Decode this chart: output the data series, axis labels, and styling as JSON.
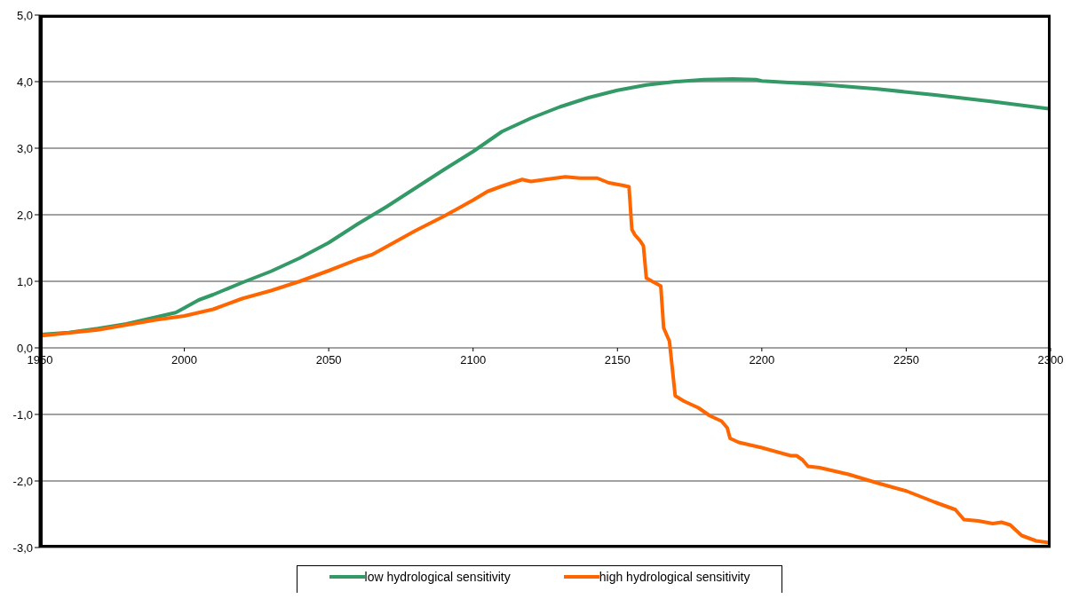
{
  "chart_data": {
    "type": "line",
    "xlim": [
      1950,
      2300
    ],
    "xticks": [
      1950,
      2000,
      2050,
      2100,
      2150,
      2200,
      2250,
      2300
    ],
    "ylim": [
      -3,
      5
    ],
    "yticks": [
      {
        "value": -3,
        "label": "-3,0"
      },
      {
        "value": -2,
        "label": "-2,0"
      },
      {
        "value": -1,
        "label": "-1,0"
      },
      {
        "value": 0,
        "label": "0,0"
      },
      {
        "value": 1,
        "label": "1,0"
      },
      {
        "value": 2,
        "label": "2,0"
      },
      {
        "value": 3,
        "label": "3,0"
      },
      {
        "value": 4,
        "label": "4,0"
      },
      {
        "value": 5,
        "label": "5,0"
      }
    ],
    "grid": "y",
    "legend": "bottom",
    "marker": "none",
    "line_style": "solid",
    "series": [
      {
        "name": "low hydrological sensitivity",
        "color": "#339966",
        "x": [
          1950,
          1960,
          1970,
          1980,
          1990,
          1997,
          2000,
          2005,
          2010,
          2020,
          2030,
          2040,
          2050,
          2055,
          2060,
          2070,
          2080,
          2090,
          2100,
          2110,
          2120,
          2130,
          2140,
          2150,
          2160,
          2170,
          2180,
          2190,
          2198,
          2200,
          2220,
          2240,
          2260,
          2280,
          2300
        ],
        "values": [
          0.2,
          0.23,
          0.29,
          0.36,
          0.46,
          0.53,
          0.6,
          0.72,
          0.8,
          0.98,
          1.15,
          1.35,
          1.58,
          1.72,
          1.86,
          2.12,
          2.4,
          2.68,
          2.95,
          3.25,
          3.45,
          3.62,
          3.76,
          3.87,
          3.95,
          4.0,
          4.03,
          4.04,
          4.03,
          4.01,
          3.96,
          3.89,
          3.8,
          3.7,
          3.59
        ]
      },
      {
        "name": "high hydrological sensitivity",
        "color": "#ff6600",
        "x": [
          1950,
          1970,
          1990,
          2000,
          2010,
          2020,
          2030,
          2040,
          2050,
          2060,
          2065,
          2070,
          2080,
          2090,
          2100,
          2105,
          2110,
          2117,
          2120,
          2125,
          2132,
          2137,
          2143,
          2147,
          2152,
          2154,
          2155,
          2156,
          2158,
          2159,
          2160,
          2162,
          2165,
          2166,
          2168,
          2170,
          2173,
          2178,
          2182,
          2186,
          2188,
          2189,
          2192,
          2200,
          2210,
          2212,
          2214,
          2216,
          2220,
          2230,
          2240,
          2250,
          2260,
          2267,
          2270,
          2275,
          2280,
          2283,
          2286,
          2290,
          2295,
          2300
        ],
        "values": [
          0.18,
          0.27,
          0.42,
          0.48,
          0.58,
          0.74,
          0.86,
          1.0,
          1.16,
          1.33,
          1.4,
          1.52,
          1.76,
          1.98,
          2.22,
          2.35,
          2.43,
          2.53,
          2.5,
          2.53,
          2.57,
          2.55,
          2.55,
          2.48,
          2.44,
          2.42,
          1.78,
          1.7,
          1.6,
          1.53,
          1.05,
          1.0,
          0.93,
          0.3,
          0.1,
          -0.72,
          -0.8,
          -0.9,
          -1.02,
          -1.1,
          -1.2,
          -1.36,
          -1.42,
          -1.5,
          -1.62,
          -1.62,
          -1.68,
          -1.78,
          -1.8,
          -1.9,
          -2.03,
          -2.15,
          -2.32,
          -2.43,
          -2.58,
          -2.6,
          -2.64,
          -2.62,
          -2.66,
          -2.82,
          -2.9,
          -2.93
        ]
      }
    ]
  }
}
